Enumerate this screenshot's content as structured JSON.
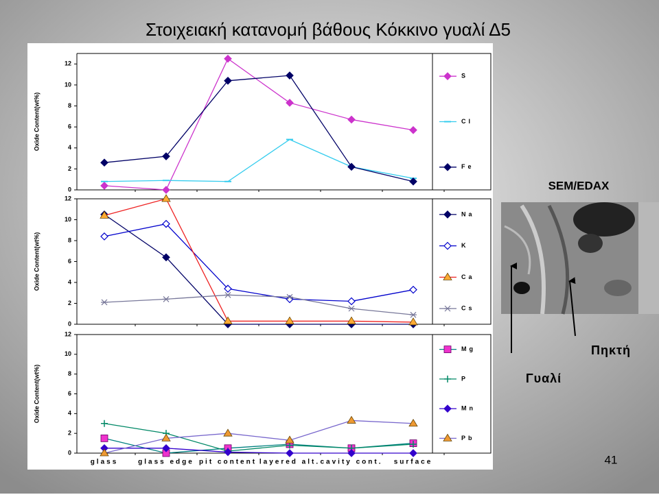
{
  "title": "Στοιχειακή κατανομή βάθους Κόκκινο γυαλί Δ5",
  "chart_data": [
    {
      "type": "line",
      "y_label": "Oxide Content(wt%)",
      "categories": [
        null,
        null,
        null,
        null,
        null,
        null
      ],
      "ylim": [
        0,
        13
      ],
      "yticks": [
        0,
        2,
        4,
        6,
        8,
        10,
        12
      ],
      "series": [
        {
          "name": "S",
          "color": "#cc33cc",
          "marker": "diamond",
          "marker_color": "#cc33cc",
          "values": [
            0.4,
            0,
            12.5,
            8.3,
            6.7,
            5.7
          ]
        },
        {
          "name": "Cl",
          "color": "#33ccee",
          "marker": "dash",
          "marker_color": "#33ccee",
          "values": [
            0.8,
            0.9,
            0.8,
            4.8,
            2.2,
            1.1
          ]
        },
        {
          "name": "Fe",
          "color": "#000066",
          "marker": "diamond",
          "marker_color": "#000066",
          "values": [
            2.6,
            3.2,
            10.4,
            10.9,
            2.2,
            0.8
          ]
        }
      ]
    },
    {
      "type": "line",
      "y_label": "Oxide Content(wt%)",
      "categories": [
        null,
        null,
        null,
        null,
        null,
        null
      ],
      "ylim": [
        0,
        12
      ],
      "yticks": [
        0,
        2,
        4,
        6,
        8,
        10,
        12
      ],
      "series": [
        {
          "name": "Na",
          "color": "#000066",
          "marker": "diamond",
          "marker_color": "#000066",
          "values": [
            10.5,
            6.4,
            0,
            0,
            0,
            0
          ]
        },
        {
          "name": "K",
          "color": "#0000cc",
          "marker": "open-diamond",
          "marker_color": "#0000cc",
          "values": [
            8.4,
            9.6,
            3.4,
            2.4,
            2.2,
            3.3
          ]
        },
        {
          "name": "Ca",
          "color": "#ee2222",
          "marker": "triangle",
          "marker_color": "#ffaa33",
          "values": [
            10.4,
            12,
            0.3,
            0.3,
            0.3,
            0.2
          ]
        },
        {
          "name": "Cs",
          "color": "#777799",
          "marker": "star",
          "marker_color": "#777799",
          "values": [
            2.1,
            2.4,
            2.8,
            2.6,
            1.5,
            0.9
          ]
        }
      ]
    },
    {
      "type": "line",
      "y_label": "Oxide Content(wt%)",
      "categories": [
        "glass",
        "glass edge",
        "pit content",
        "layered alt.",
        "cavity cont.",
        "surface"
      ],
      "ylim": [
        0,
        12
      ],
      "yticks": [
        0,
        2,
        4,
        6,
        8,
        10,
        12
      ],
      "series": [
        {
          "name": "Mg",
          "color": "#008080",
          "marker": "square",
          "marker_color": "#ee33cc",
          "values": [
            1.5,
            0,
            0.5,
            0.9,
            0.5,
            1.0
          ]
        },
        {
          "name": "P",
          "color": "#008866",
          "marker": "plus",
          "marker_color": "#008866",
          "values": [
            3.0,
            2.0,
            0.2,
            0.8,
            0.5,
            0.9
          ]
        },
        {
          "name": "Mn",
          "color": "#3300cc",
          "marker": "diamond",
          "marker_color": "#3300cc",
          "values": [
            0.5,
            0.5,
            0.1,
            0,
            0,
            0
          ]
        },
        {
          "name": "Pb",
          "color": "#7766cc",
          "marker": "triangle",
          "marker_color": "#ee9933",
          "values": [
            0,
            1.5,
            2.0,
            1.3,
            3.3,
            3.0
          ]
        }
      ]
    }
  ],
  "labels": {
    "method": "SEM/EDAX",
    "gel": "Πηκτή",
    "glass": "Γυαλί",
    "page": "41"
  }
}
